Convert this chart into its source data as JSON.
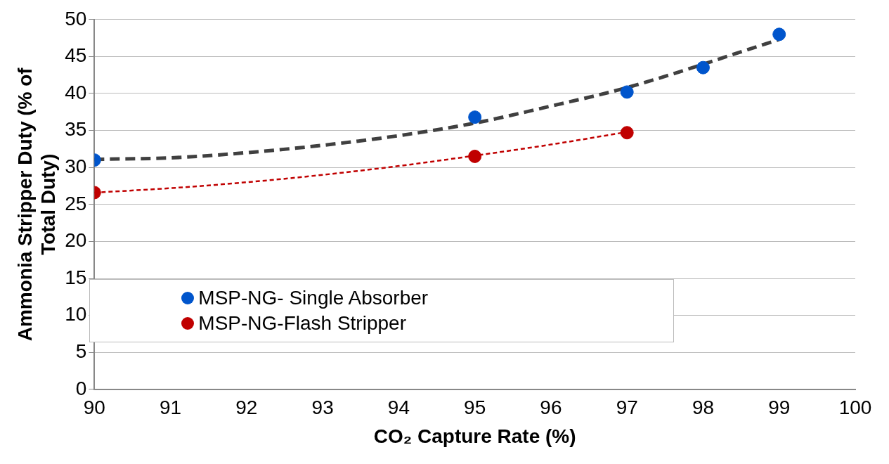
{
  "chart_data": {
    "type": "scatter",
    "xlabel": "CO₂ Capture Rate (%)",
    "ylabel": "Ammonia Stripper Duty (% of Total Duty)",
    "xlim": [
      90,
      100
    ],
    "xticks": [
      90,
      91,
      92,
      93,
      94,
      95,
      96,
      97,
      98,
      99,
      100
    ],
    "ylim": [
      0,
      50
    ],
    "yticks": [
      0,
      5,
      10,
      15,
      20,
      25,
      30,
      35,
      40,
      45,
      50
    ],
    "grid": "y",
    "legend": "bottom left",
    "marker": "circle",
    "series": [
      {
        "type": "line",
        "color": "#404040",
        "line_style": "dashed",
        "marker": "none",
        "x": [
          90,
          91,
          92,
          93,
          94,
          95,
          96,
          97,
          99
        ],
        "values": [
          31.1,
          31.3,
          32,
          33,
          34.3,
          36,
          38.3,
          40.8,
          47.3
        ]
      },
      {
        "type": "line",
        "color": "#c00000",
        "line_style": "dotted",
        "marker": "none",
        "x": [
          90,
          91,
          92,
          93,
          94,
          95,
          96,
          97
        ],
        "values": [
          26.6,
          27.2,
          28,
          29,
          30.2,
          31.6,
          33.1,
          34.8
        ]
      },
      {
        "name": "MSP-NG- Single Absorber",
        "color": "#0055cc",
        "x": [
          90,
          95,
          97,
          98,
          99
        ],
        "values": [
          31,
          36.8,
          40.2,
          43.5,
          48
        ]
      },
      {
        "name": "MSP-NG-Flash Stripper",
        "color": "#c00000",
        "x": [
          90,
          95,
          97
        ],
        "values": [
          26.6,
          31.5,
          34.7
        ]
      }
    ]
  }
}
